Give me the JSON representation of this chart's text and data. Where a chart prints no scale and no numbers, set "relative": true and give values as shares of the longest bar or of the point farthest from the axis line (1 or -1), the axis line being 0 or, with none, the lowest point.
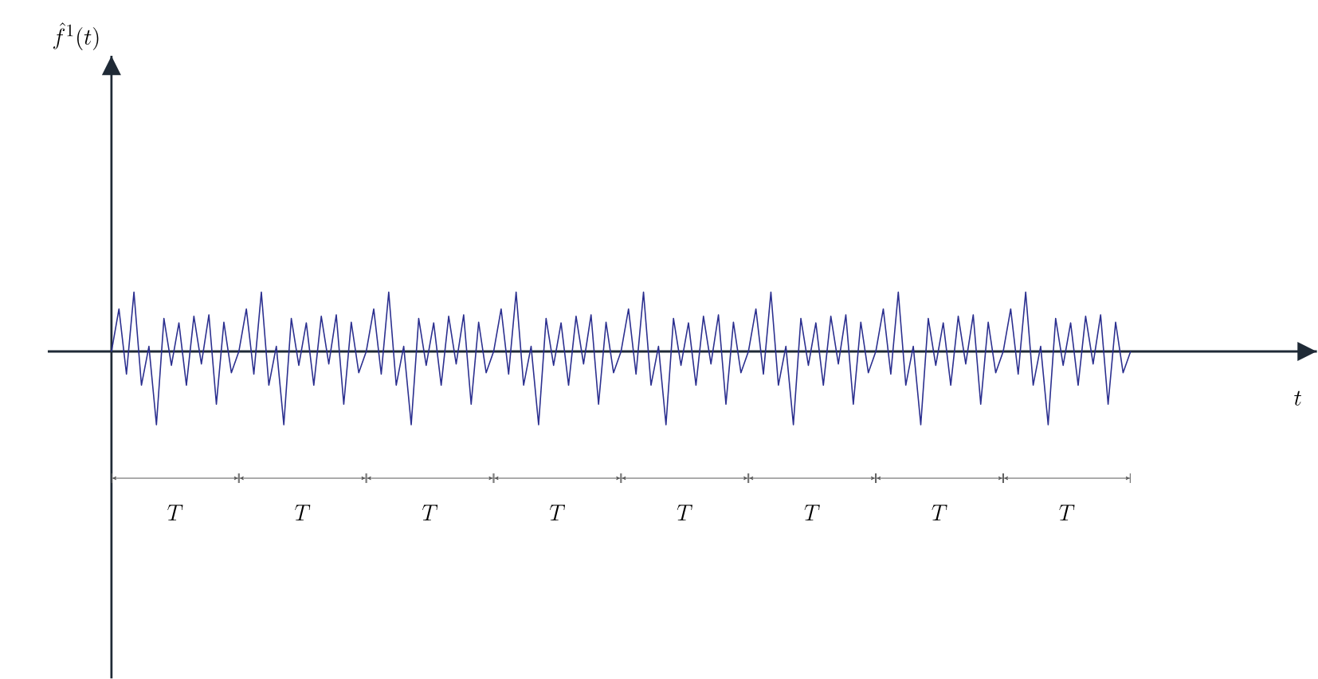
{
  "chart_data": {
    "type": "line",
    "relative": true,
    "annotations": [
      "T",
      "T",
      "T",
      "T",
      "T",
      "T",
      "T",
      "T",
      "t",
      "\\hat{f}^{1}(t)"
    ],
    "categories": [
      null,
      null,
      null,
      null,
      null,
      null,
      null,
      null,
      null,
      null,
      null,
      null,
      null,
      null,
      null,
      null,
      null,
      null,
      null,
      null,
      null,
      null,
      null,
      null,
      null,
      null,
      null,
      null,
      null,
      null,
      null,
      null,
      null,
      null,
      null,
      null,
      null,
      null,
      null,
      null,
      null,
      null,
      null,
      null,
      null,
      null,
      null,
      null,
      null,
      null,
      null,
      null,
      null,
      null,
      null,
      null,
      null,
      null,
      null,
      null,
      null,
      null,
      null,
      null,
      null,
      null,
      null,
      null,
      null,
      null,
      null,
      null,
      null,
      null,
      null,
      null,
      null,
      null,
      null,
      null,
      null,
      null,
      null,
      null,
      null,
      null,
      null,
      null,
      null,
      null,
      null,
      null,
      null,
      null,
      null,
      null,
      null,
      null,
      null,
      null,
      null,
      null,
      null,
      null,
      null,
      null,
      null,
      null,
      null,
      null,
      null,
      null,
      null,
      null,
      null,
      null,
      null,
      null,
      null,
      null,
      null,
      null,
      null,
      null,
      null,
      null,
      null,
      null,
      null,
      null,
      null,
      null,
      null,
      null,
      null,
      null,
      null
    ],
    "series": [
      {
        "color": "#2b2f8f",
        "values": [
          0,
          0.58,
          -0.31,
          0.81,
          -0.46,
          0.07,
          -1,
          0.45,
          -0.19,
          0.39,
          -0.46,
          0.48,
          -0.17,
          0.5,
          -0.72,
          0.4,
          -0.29,
          0,
          0.58,
          -0.31,
          0.81,
          -0.46,
          0.07,
          -1,
          0.45,
          -0.19,
          0.39,
          -0.46,
          0.48,
          -0.17,
          0.5,
          -0.72,
          0.4,
          -0.29,
          0,
          0.58,
          -0.31,
          0.81,
          -0.46,
          0.07,
          -1,
          0.45,
          -0.19,
          0.39,
          -0.46,
          0.48,
          -0.17,
          0.5,
          -0.72,
          0.4,
          -0.29,
          0,
          0.58,
          -0.31,
          0.81,
          -0.46,
          0.07,
          -1,
          0.45,
          -0.19,
          0.39,
          -0.46,
          0.48,
          -0.17,
          0.5,
          -0.72,
          0.4,
          -0.29,
          0,
          0.58,
          -0.31,
          0.81,
          -0.46,
          0.07,
          -1,
          0.45,
          -0.19,
          0.39,
          -0.46,
          0.48,
          -0.17,
          0.5,
          -0.72,
          0.4,
          -0.29,
          0,
          0.58,
          -0.31,
          0.81,
          -0.46,
          0.07,
          -1,
          0.45,
          -0.19,
          0.39,
          -0.46,
          0.48,
          -0.17,
          0.5,
          -0.72,
          0.4,
          -0.29,
          0,
          0.58,
          -0.31,
          0.81,
          -0.46,
          0.07,
          -1,
          0.45,
          -0.19,
          0.39,
          -0.46,
          0.48,
          -0.17,
          0.5,
          -0.72,
          0.4,
          -0.29,
          0,
          0.58,
          -0.31,
          0.81,
          -0.46,
          0.07,
          -1,
          0.45,
          -0.19,
          0.39,
          -0.46,
          0.48,
          -0.17,
          0.5,
          -0.72,
          0.4,
          -0.29,
          0
        ]
      }
    ]
  }
}
